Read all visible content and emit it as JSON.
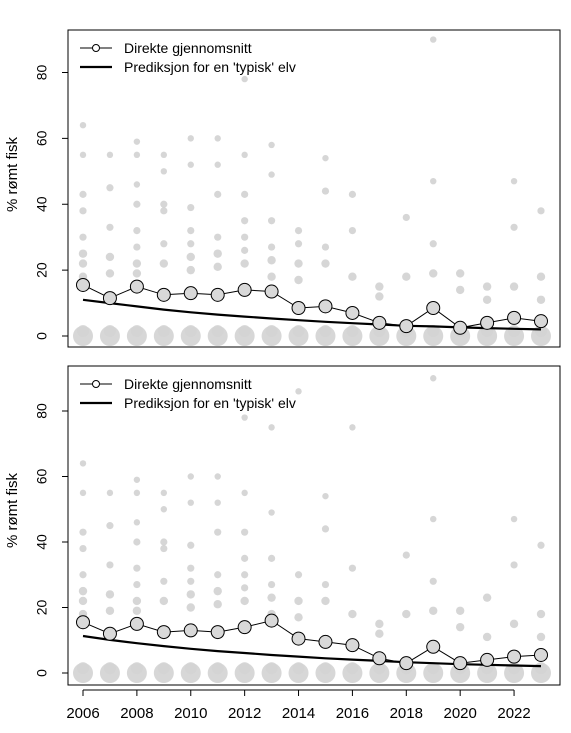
{
  "chart_data": [
    {
      "type": "scatter",
      "panel": "top",
      "ylabel": "% rømt fisk",
      "xlabel": "",
      "xlim": [
        2005.5,
        2023.5
      ],
      "ylim": [
        -2,
        92
      ],
      "yticks": [
        0,
        20,
        40,
        60,
        80
      ],
      "xticks": [],
      "grid": false,
      "legend_position": "top-left",
      "legend": [
        {
          "label": "Direkte gjennomsnitt",
          "style": "line-with-open-circle"
        },
        {
          "label": "Prediksjon for en 'typisk' elv",
          "style": "thick-line"
        }
      ],
      "series": [
        {
          "name": "Direkte gjennomsnitt",
          "x": [
            2006,
            2007,
            2008,
            2009,
            2010,
            2011,
            2012,
            2013,
            2014,
            2015,
            2016,
            2017,
            2018,
            2019,
            2020,
            2021,
            2022,
            2023
          ],
          "values": [
            15.5,
            11.5,
            15,
            12.5,
            13,
            12.5,
            14,
            13.5,
            8.5,
            9,
            7,
            4,
            3,
            8.5,
            2.5,
            4,
            5.5,
            4.5
          ]
        },
        {
          "name": "Prediksjon for en 'typisk' elv",
          "x": [
            2006,
            2007,
            2008,
            2009,
            2010,
            2011,
            2012,
            2013,
            2014,
            2015,
            2016,
            2017,
            2018,
            2019,
            2020,
            2021,
            2022,
            2023
          ],
          "values": [
            11,
            10,
            9,
            8,
            7.2,
            6.5,
            5.9,
            5.3,
            4.8,
            4.3,
            3.9,
            3.5,
            3.1,
            2.9,
            2.6,
            2.4,
            2.2,
            2.0
          ]
        },
        {
          "name": "",
          "x": [
            2006,
            2006,
            2006,
            2006,
            2006,
            2006,
            2006,
            2006,
            2007,
            2007,
            2007,
            2007,
            2007,
            2008,
            2008,
            2008,
            2008,
            2008,
            2008,
            2008,
            2008,
            2009,
            2009,
            2009,
            2009,
            2009,
            2009,
            2010,
            2010,
            2010,
            2010,
            2010,
            2010,
            2010,
            2011,
            2011,
            2011,
            2011,
            2011,
            2011,
            2012,
            2012,
            2012,
            2012,
            2012,
            2012,
            2012,
            2013,
            2013,
            2013,
            2013,
            2013,
            2013,
            2014,
            2014,
            2014,
            2014,
            2015,
            2015,
            2015,
            2015,
            2016,
            2016,
            2016,
            2017,
            2017,
            2018,
            2018,
            2019,
            2019,
            2019,
            2019,
            2020,
            2020,
            2021,
            2021,
            2022,
            2022,
            2022,
            2023,
            2023,
            2023
          ],
          "values": [
            64,
            55,
            43,
            38,
            30,
            25,
            22,
            18,
            55,
            45,
            33,
            24,
            19,
            59,
            55,
            46,
            40,
            32,
            27,
            22,
            19,
            55,
            50,
            40,
            38,
            28,
            22,
            60,
            52,
            39,
            32,
            28,
            24,
            20,
            60,
            52,
            43,
            30,
            25,
            21,
            78,
            55,
            43,
            35,
            30,
            26,
            22,
            58,
            49,
            35,
            27,
            23,
            18,
            32,
            28,
            22,
            17,
            54,
            44,
            27,
            22,
            43,
            32,
            18,
            15,
            12,
            36,
            18,
            90,
            47,
            28,
            19,
            19,
            14,
            15,
            11,
            47,
            33,
            15,
            38,
            18,
            11
          ]
        }
      ]
    },
    {
      "type": "scatter",
      "panel": "bottom",
      "ylabel": "% rømt fisk",
      "xlabel": "",
      "xlim": [
        2005.5,
        2023.5
      ],
      "ylim": [
        -2,
        92
      ],
      "yticks": [
        0,
        20,
        40,
        60,
        80
      ],
      "xticks": [
        2006,
        2008,
        2010,
        2012,
        2014,
        2016,
        2018,
        2020,
        2022
      ],
      "grid": false,
      "legend_position": "top-left",
      "legend": [
        {
          "label": "Direkte gjennomsnitt",
          "style": "line-with-open-circle"
        },
        {
          "label": "Prediksjon for en 'typisk' elv",
          "style": "thick-line"
        }
      ],
      "series": [
        {
          "name": "Direkte gjennomsnitt",
          "x": [
            2006,
            2007,
            2008,
            2009,
            2010,
            2011,
            2012,
            2013,
            2014,
            2015,
            2016,
            2017,
            2018,
            2019,
            2020,
            2021,
            2022,
            2023
          ],
          "values": [
            15.5,
            12,
            15,
            12.5,
            13,
            12.5,
            14,
            16,
            10.5,
            9.5,
            8.5,
            4.5,
            3,
            8,
            3,
            4,
            5,
            5.5
          ]
        },
        {
          "name": "Prediksjon for en 'typisk' elv",
          "x": [
            2006,
            2007,
            2008,
            2009,
            2010,
            2011,
            2012,
            2013,
            2014,
            2015,
            2016,
            2017,
            2018,
            2019,
            2020,
            2021,
            2022,
            2023
          ],
          "values": [
            11.3,
            10.1,
            9.1,
            8.2,
            7.4,
            6.7,
            6.1,
            5.5,
            5.0,
            4.5,
            4.1,
            3.7,
            3.3,
            3.0,
            2.7,
            2.5,
            2.3,
            2.1
          ]
        },
        {
          "name": "",
          "x": [
            2006,
            2006,
            2006,
            2006,
            2006,
            2006,
            2006,
            2006,
            2007,
            2007,
            2007,
            2007,
            2007,
            2008,
            2008,
            2008,
            2008,
            2008,
            2008,
            2008,
            2008,
            2009,
            2009,
            2009,
            2009,
            2009,
            2009,
            2010,
            2010,
            2010,
            2010,
            2010,
            2010,
            2010,
            2011,
            2011,
            2011,
            2011,
            2011,
            2011,
            2012,
            2012,
            2012,
            2012,
            2012,
            2012,
            2012,
            2013,
            2013,
            2013,
            2013,
            2013,
            2013,
            2014,
            2014,
            2014,
            2014,
            2015,
            2015,
            2015,
            2015,
            2016,
            2016,
            2016,
            2017,
            2017,
            2018,
            2018,
            2019,
            2019,
            2019,
            2019,
            2020,
            2020,
            2021,
            2021,
            2022,
            2022,
            2022,
            2023,
            2023,
            2023
          ],
          "values": [
            64,
            55,
            43,
            38,
            30,
            25,
            22,
            18,
            55,
            45,
            33,
            24,
            19,
            59,
            55,
            46,
            40,
            32,
            27,
            22,
            19,
            55,
            50,
            40,
            38,
            28,
            22,
            60,
            52,
            39,
            32,
            28,
            24,
            20,
            60,
            52,
            43,
            30,
            25,
            21,
            78,
            55,
            43,
            35,
            30,
            26,
            22,
            75,
            49,
            35,
            27,
            23,
            18,
            86,
            30,
            22,
            17,
            54,
            44,
            27,
            22,
            75,
            32,
            18,
            15,
            12,
            36,
            18,
            90,
            47,
            28,
            19,
            19,
            14,
            23,
            11,
            47,
            33,
            15,
            39,
            18,
            11
          ]
        }
      ]
    }
  ]
}
